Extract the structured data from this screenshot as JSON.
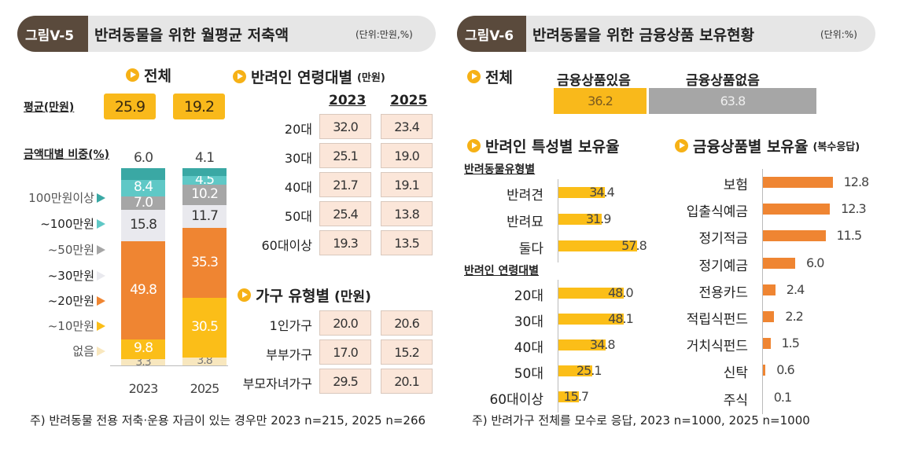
{
  "left": {
    "fig_tag": "그림V-5",
    "fig_title": "반려동물을 위한 월평균 저축액",
    "unit": "(단위:만원,%)",
    "total_section": "전체",
    "avg_label": "평균(만원)",
    "avg_2023": "25.9",
    "avg_2025": "19.2",
    "dist_label": "금액대별 비중(%)",
    "legend": [
      {
        "label": "100만원이상",
        "color": "#3aa8a4"
      },
      {
        "label": "~100만원",
        "color": "#5fc8c6"
      },
      {
        "label": "~50만원",
        "color": "#a6a6a6"
      },
      {
        "label": "~30만원",
        "color": "#e9e9ee"
      },
      {
        "label": "~20만원",
        "color": "#ef8532"
      },
      {
        "label": "~10만원",
        "color": "#fbbe18"
      },
      {
        "label": "없음",
        "color": "#f8e7be"
      }
    ],
    "age_section": "반려인 연령대별",
    "age_unit": "(만원)",
    "years": [
      "2023",
      "2025"
    ],
    "age_rows": [
      {
        "label": "20대",
        "v2023": "32.0",
        "v2025": "23.4"
      },
      {
        "label": "30대",
        "v2023": "25.1",
        "v2025": "19.0"
      },
      {
        "label": "40대",
        "v2023": "21.7",
        "v2025": "19.1"
      },
      {
        "label": "50대",
        "v2023": "25.4",
        "v2025": "13.8"
      },
      {
        "label": "60대이상",
        "v2023": "19.3",
        "v2025": "13.5"
      }
    ],
    "hh_section": "가구 유형별",
    "hh_unit": "(만원)",
    "hh_rows": [
      {
        "label": "1인가구",
        "v2023": "20.0",
        "v2025": "20.6"
      },
      {
        "label": "부부가구",
        "v2023": "17.0",
        "v2025": "15.2"
      },
      {
        "label": "부모자녀가구",
        "v2023": "29.5",
        "v2025": "20.1"
      }
    ],
    "note": "주) 반려동물 전용 저축·운용 자금이 있는 경우만 2023 n=215, 2025 n=266"
  },
  "right": {
    "fig_tag": "그림V-6",
    "fig_title": "반려동물을 위한 금융상품 보유현황",
    "unit": "(단위:%)",
    "total_section": "전체",
    "has_label": "금융상품있음",
    "none_label": "금융상품없음",
    "trait_section": "반려인 특성별 보유율",
    "pet_type_label": "반려동물유형별",
    "age_label": "반려인 연령대별",
    "product_section": "금융상품별 보유율",
    "product_unit": "(복수응답)",
    "note": "주) 반려가구 전체를 모수로 응답, 2023 n=1000, 2025 n=1000"
  },
  "chart_data": [
    {
      "type": "bar",
      "stacked": true,
      "title": "금액대별 비중(%)",
      "categories": [
        "2023",
        "2025"
      ],
      "series": [
        {
          "name": "없음",
          "values": [
            3.3,
            3.8
          ]
        },
        {
          "name": "~10만원",
          "values": [
            9.8,
            30.5
          ]
        },
        {
          "name": "~20만원",
          "values": [
            49.8,
            35.3
          ]
        },
        {
          "name": "~30만원",
          "values": [
            15.8,
            11.7
          ]
        },
        {
          "name": "~50만원",
          "values": [
            7.0,
            10.2
          ]
        },
        {
          "name": "~100만원",
          "values": [
            8.4,
            4.5
          ]
        },
        {
          "name": "100만원이상",
          "values": [
            6.0,
            4.1
          ]
        }
      ]
    },
    {
      "type": "bar",
      "stacked": true,
      "title": "전체",
      "categories": [
        "금융상품있음",
        "금융상품없음"
      ],
      "values": [
        36.2,
        63.8
      ]
    },
    {
      "type": "bar",
      "orientation": "horizontal",
      "title": "반려동물유형별",
      "categories": [
        "반려견",
        "반려묘",
        "둘다"
      ],
      "values": [
        34.4,
        31.9,
        57.8
      ]
    },
    {
      "type": "bar",
      "orientation": "horizontal",
      "title": "반려인 연령대별",
      "categories": [
        "20대",
        "30대",
        "40대",
        "50대",
        "60대이상"
      ],
      "values": [
        48.0,
        48.1,
        34.8,
        25.1,
        15.7
      ]
    },
    {
      "type": "bar",
      "orientation": "horizontal",
      "title": "금융상품별 보유율(복수응답)",
      "categories": [
        "보험",
        "입출식예금",
        "정기적금",
        "정기예금",
        "전용카드",
        "적립식펀드",
        "거치식펀드",
        "신탁",
        "주식"
      ],
      "values": [
        12.8,
        12.3,
        11.5,
        6.0,
        2.4,
        2.2,
        1.5,
        0.6,
        0.1
      ]
    }
  ]
}
